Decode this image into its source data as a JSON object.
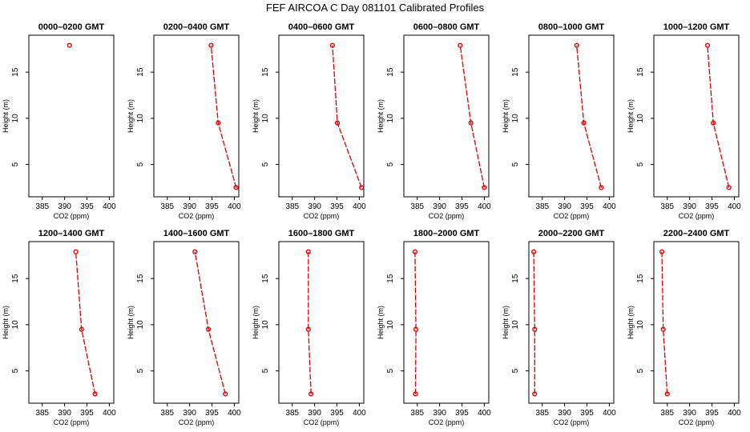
{
  "title": "FEF AIRCOA C  Day 081101  Calibrated Profiles",
  "colors": {
    "series": "#dd0000",
    "axis": "#000000",
    "background": "#ffffff"
  },
  "chart_data": [
    {
      "type": "line",
      "title": "0000–0200 GMT",
      "xlabel": "CO2 (ppm)",
      "ylabel": "Height (m)",
      "xlim": [
        382,
        401
      ],
      "ylim": [
        1.5,
        19
      ],
      "xticks": [
        385,
        390,
        395,
        400
      ],
      "yticks": [
        5,
        10,
        15
      ],
      "x": [
        391.1
      ],
      "y": [
        17.9
      ]
    },
    {
      "type": "line",
      "title": "0200–0400 GMT",
      "xlabel": "CO2 (ppm)",
      "ylabel": "Height (m)",
      "xlim": [
        382,
        401
      ],
      "ylim": [
        1.5,
        19
      ],
      "xticks": [
        385,
        390,
        395,
        400
      ],
      "yticks": [
        5,
        10,
        15
      ],
      "x": [
        400.4,
        396.4,
        394.8
      ],
      "y": [
        2.5,
        9.5,
        17.9
      ]
    },
    {
      "type": "line",
      "title": "0400–0600 GMT",
      "xlabel": "CO2 (ppm)",
      "ylabel": "Height (m)",
      "xlim": [
        382,
        401
      ],
      "ylim": [
        1.5,
        19
      ],
      "xticks": [
        385,
        390,
        395,
        400
      ],
      "yticks": [
        5,
        10,
        15
      ],
      "x": [
        400.5,
        395.1,
        394.0
      ],
      "y": [
        2.5,
        9.5,
        17.9
      ]
    },
    {
      "type": "line",
      "title": "0600–0800 GMT",
      "xlabel": "CO2 (ppm)",
      "ylabel": "Height (m)",
      "xlim": [
        382,
        401
      ],
      "ylim": [
        1.5,
        19
      ],
      "xticks": [
        385,
        390,
        395,
        400
      ],
      "yticks": [
        5,
        10,
        15
      ],
      "x": [
        400.0,
        397.0,
        394.6
      ],
      "y": [
        2.5,
        9.5,
        17.9
      ]
    },
    {
      "type": "line",
      "title": "0800–1000 GMT",
      "xlabel": "CO2 (ppm)",
      "ylabel": "Height (m)",
      "xlim": [
        382,
        401
      ],
      "ylim": [
        1.5,
        19
      ],
      "xticks": [
        385,
        390,
        395,
        400
      ],
      "yticks": [
        5,
        10,
        15
      ],
      "x": [
        398.2,
        394.3,
        392.7
      ],
      "y": [
        2.5,
        9.5,
        17.9
      ]
    },
    {
      "type": "line",
      "title": "1000–1200 GMT",
      "xlabel": "CO2 (ppm)",
      "ylabel": "Height (m)",
      "xlim": [
        382,
        401
      ],
      "ylim": [
        1.5,
        19
      ],
      "xticks": [
        385,
        390,
        395,
        400
      ],
      "yticks": [
        5,
        10,
        15
      ],
      "x": [
        398.8,
        395.3,
        394.0
      ],
      "y": [
        2.5,
        9.5,
        17.9
      ]
    },
    {
      "type": "line",
      "title": "1200–1400 GMT",
      "xlabel": "CO2 (ppm)",
      "ylabel": "Height (m)",
      "xlim": [
        382,
        401
      ],
      "ylim": [
        1.5,
        19
      ],
      "xticks": [
        385,
        390,
        395,
        400
      ],
      "yticks": [
        5,
        10,
        15
      ],
      "x": [
        396.8,
        393.8,
        392.5
      ],
      "y": [
        2.5,
        9.5,
        17.9
      ]
    },
    {
      "type": "line",
      "title": "1400–1600 GMT",
      "xlabel": "CO2 (ppm)",
      "ylabel": "Height (m)",
      "xlim": [
        382,
        401
      ],
      "ylim": [
        1.5,
        19
      ],
      "xticks": [
        385,
        390,
        395,
        400
      ],
      "yticks": [
        5,
        10,
        15
      ],
      "x": [
        398.0,
        394.2,
        391.2
      ],
      "y": [
        2.5,
        9.5,
        17.9
      ]
    },
    {
      "type": "line",
      "title": "1600–1800 GMT",
      "xlabel": "CO2 (ppm)",
      "ylabel": "Height (m)",
      "xlim": [
        382,
        401
      ],
      "ylim": [
        1.5,
        19
      ],
      "xticks": [
        385,
        390,
        395,
        400
      ],
      "yticks": [
        5,
        10,
        15
      ],
      "x": [
        389.2,
        388.6,
        388.6
      ],
      "y": [
        2.5,
        9.5,
        17.9
      ]
    },
    {
      "type": "line",
      "title": "1800–2000 GMT",
      "xlabel": "CO2 (ppm)",
      "ylabel": "Height (m)",
      "xlim": [
        382,
        401
      ],
      "ylim": [
        1.5,
        19
      ],
      "xticks": [
        385,
        390,
        395,
        400
      ],
      "yticks": [
        5,
        10,
        15
      ],
      "x": [
        384.6,
        384.7,
        384.5
      ],
      "y": [
        2.5,
        9.5,
        17.9
      ]
    },
    {
      "type": "line",
      "title": "2000–2200 GMT",
      "xlabel": "CO2 (ppm)",
      "ylabel": "Height (m)",
      "xlim": [
        382,
        401
      ],
      "ylim": [
        1.5,
        19
      ],
      "xticks": [
        385,
        390,
        395,
        400
      ],
      "yticks": [
        5,
        10,
        15
      ],
      "x": [
        383.3,
        383.3,
        383.1
      ],
      "y": [
        2.5,
        9.5,
        17.9
      ]
    },
    {
      "type": "line",
      "title": "2200–2400 GMT",
      "xlabel": "CO2 (ppm)",
      "ylabel": "Height (m)",
      "xlim": [
        382,
        401
      ],
      "ylim": [
        1.5,
        19
      ],
      "xticks": [
        385,
        390,
        395,
        400
      ],
      "yticks": [
        5,
        10,
        15
      ],
      "x": [
        385.0,
        384.1,
        383.8
      ],
      "y": [
        2.5,
        9.5,
        17.9
      ]
    }
  ]
}
